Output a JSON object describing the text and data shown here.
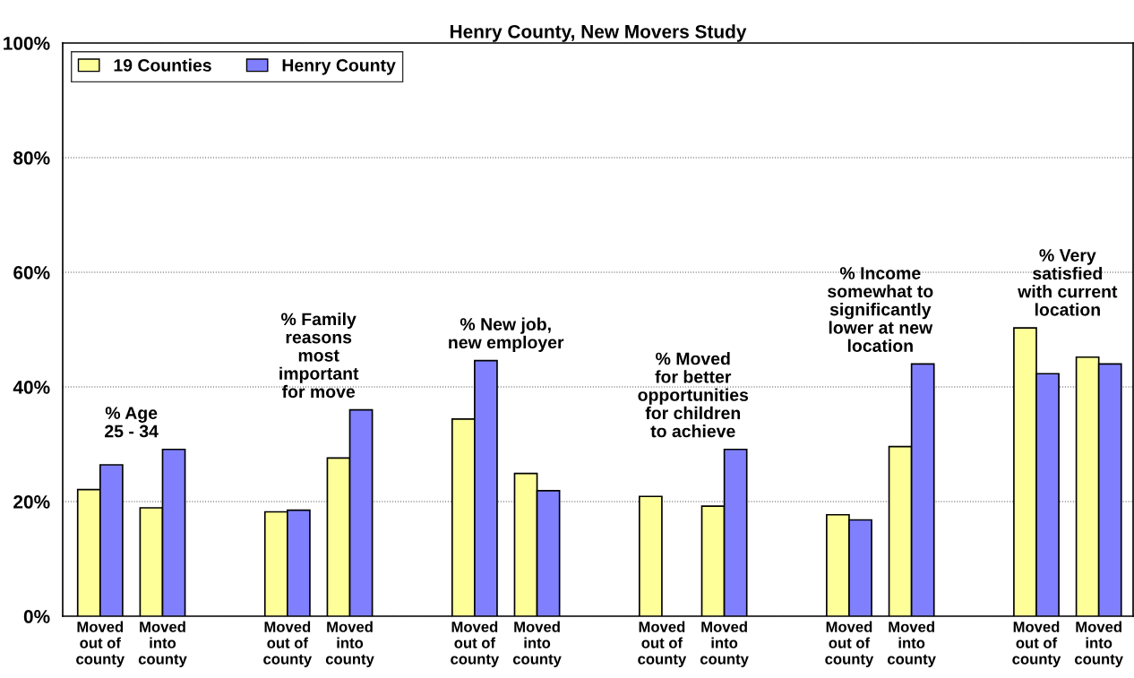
{
  "chart_data": {
    "type": "bar",
    "title": "Henry County, New Movers Study",
    "categories": [
      "Moved\nout of\ncounty",
      "Moved\ninto\ncounty",
      null,
      "Moved\nout of\ncounty",
      "Moved\ninto\ncounty",
      null,
      "Moved\nout of\ncounty",
      "Moved\ninto\ncounty",
      null,
      "Moved\nout of\ncounty",
      "Moved\ninto\ncounty",
      null,
      "Moved\nout of\ncounty",
      "Moved\ninto\ncounty",
      null,
      "Moved\nout of\ncounty",
      "Moved\ninto\ncounty"
    ],
    "series": [
      {
        "name": "19 Counties",
        "color": "#ffff99",
        "values": [
          22.1,
          18.9,
          null,
          18.2,
          27.6,
          null,
          34.4,
          24.9,
          null,
          20.9,
          19.2,
          null,
          17.7,
          29.6,
          null,
          50.3,
          45.2
        ]
      },
      {
        "name": "Henry County",
        "color": "#8080ff",
        "values": [
          26.4,
          29.1,
          null,
          18.5,
          36.0,
          null,
          44.6,
          21.9,
          null,
          null,
          29.1,
          null,
          16.8,
          44.0,
          null,
          42.3,
          44.0
        ]
      }
    ],
    "annotations": [
      "% Age\n25 - 34",
      "% Family\nreasons\nmost\nimportant\nfor move",
      "% New job,\nnew employer",
      "% Moved\nfor better\nopportunities\nfor children\nto achieve",
      "% Income\nsomewhat to\nsignificantly\nlower at new\nlocation",
      "% Very\nsatisfied\nwith current\nlocation"
    ],
    "ylim": [
      0,
      100
    ],
    "yticks": [
      {
        "value": 0,
        "label": "0%"
      },
      {
        "value": 20,
        "label": "20%"
      },
      {
        "value": 40,
        "label": "40%"
      },
      {
        "value": 60,
        "label": "60%"
      },
      {
        "value": 80,
        "label": "80%"
      },
      {
        "value": 100,
        "label": "100%"
      }
    ],
    "grid": "y",
    "legend": "top left"
  }
}
